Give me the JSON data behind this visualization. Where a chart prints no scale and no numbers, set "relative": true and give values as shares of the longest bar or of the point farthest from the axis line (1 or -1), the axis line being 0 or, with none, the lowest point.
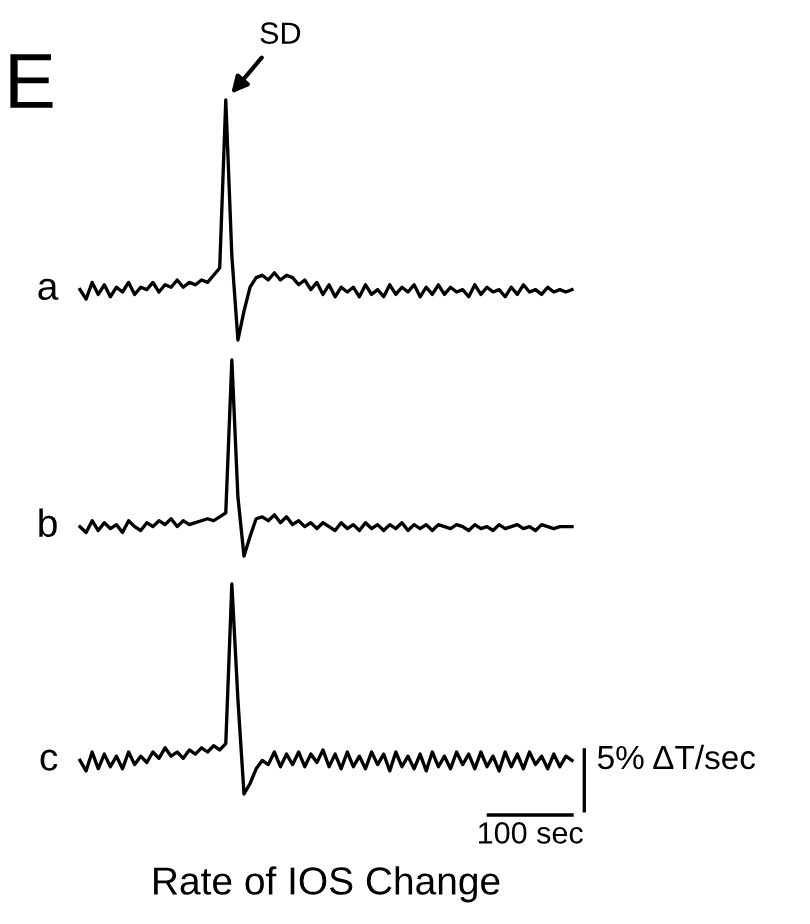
{
  "chart_data": [
    {
      "type": "line",
      "title": "E",
      "relative": true,
      "line_style": "solid",
      "marker": "none",
      "categories": [
        null,
        null,
        null,
        null,
        null,
        null,
        null,
        null,
        null,
        null,
        null,
        null,
        null,
        null,
        null,
        null,
        null,
        null,
        null,
        null,
        null,
        null,
        null,
        null,
        null,
        null,
        null,
        null,
        null,
        null,
        null,
        null,
        null,
        null,
        null,
        null,
        null,
        null,
        null,
        null,
        null,
        null,
        null,
        null,
        null,
        null,
        null,
        null,
        null,
        null,
        null,
        null,
        null,
        null,
        null,
        null,
        null,
        null,
        null,
        null,
        null,
        null,
        null,
        null,
        null,
        null,
        null,
        null,
        null,
        null,
        null,
        null,
        null,
        null,
        null,
        null,
        null,
        null,
        null,
        null,
        null,
        null
      ],
      "series": [
        {
          "name": "a",
          "color": "#000000",
          "values": [
            0.21,
            0.17,
            0.24,
            0.19,
            0.23,
            0.18,
            0.22,
            0.2,
            0.24,
            0.19,
            0.22,
            0.21,
            0.24,
            0.2,
            0.23,
            0.22,
            0.25,
            0.22,
            0.24,
            0.23,
            0.25,
            0.24,
            0.27,
            0.3,
            1.0,
            0.35,
            0,
            0.12,
            0.22,
            0.26,
            0.27,
            0.25,
            0.28,
            0.25,
            0.27,
            0.26,
            0.23,
            0.25,
            0.21,
            0.24,
            0.19,
            0.23,
            0.18,
            0.22,
            0.2,
            0.22,
            0.18,
            0.23,
            0.19,
            0.21,
            0.18,
            0.23,
            0.19,
            0.22,
            0.2,
            0.23,
            0.18,
            0.22,
            0.19,
            0.23,
            0.19,
            0.22,
            0.2,
            0.21,
            0.18,
            0.23,
            0.19,
            0.22,
            0.2,
            0.21,
            0.18,
            0.22,
            0.19,
            0.23,
            0.2,
            0.21,
            0.19,
            0.22,
            0.2,
            0.21,
            0.2,
            0.21
          ]
        }
      ],
      "annotations": [
        "SD"
      ]
    },
    {
      "type": "line",
      "relative": true,
      "line_style": "solid",
      "marker": "none",
      "categories": [
        null,
        null,
        null,
        null,
        null,
        null,
        null,
        null,
        null,
        null,
        null,
        null,
        null,
        null,
        null,
        null,
        null,
        null,
        null,
        null,
        null,
        null,
        null,
        null,
        null,
        null,
        null,
        null,
        null,
        null,
        null,
        null,
        null,
        null,
        null,
        null,
        null,
        null,
        null,
        null,
        null,
        null,
        null,
        null,
        null,
        null,
        null,
        null,
        null,
        null,
        null,
        null,
        null,
        null,
        null,
        null,
        null,
        null,
        null,
        null,
        null,
        null,
        null,
        null,
        null,
        null,
        null,
        null,
        null,
        null,
        null,
        null,
        null,
        null,
        null,
        null,
        null,
        null,
        null,
        null,
        null,
        null
      ],
      "series": [
        {
          "name": "b",
          "color": "#000000",
          "values": [
            0.15,
            0.12,
            0.18,
            0.13,
            0.17,
            0.14,
            0.16,
            0.12,
            0.18,
            0.15,
            0.13,
            0.17,
            0.15,
            0.18,
            0.16,
            0.19,
            0.15,
            0.18,
            0.16,
            0.17,
            0.18,
            0.19,
            0.18,
            0.2,
            0.22,
            1.0,
            0.3,
            0,
            0.1,
            0.19,
            0.2,
            0.18,
            0.21,
            0.17,
            0.2,
            0.16,
            0.18,
            0.15,
            0.17,
            0.14,
            0.17,
            0.15,
            0.13,
            0.17,
            0.14,
            0.16,
            0.13,
            0.17,
            0.14,
            0.16,
            0.13,
            0.16,
            0.14,
            0.17,
            0.13,
            0.16,
            0.14,
            0.16,
            0.13,
            0.16,
            0.15,
            0.14,
            0.16,
            0.15,
            0.13,
            0.16,
            0.14,
            0.15,
            0.13,
            0.16,
            0.14,
            0.15,
            0.16,
            0.14,
            0.15,
            0.13,
            0.16,
            0.15,
            0.14,
            0.15,
            0.15,
            0.15
          ]
        }
      ]
    },
    {
      "type": "line",
      "relative": true,
      "line_style": "solid",
      "marker": "none",
      "xlabel": "Rate of IOS Change",
      "categories": [
        null,
        null,
        null,
        null,
        null,
        null,
        null,
        null,
        null,
        null,
        null,
        null,
        null,
        null,
        null,
        null,
        null,
        null,
        null,
        null,
        null,
        null,
        null,
        null,
        null,
        null,
        null,
        null,
        null,
        null,
        null,
        null,
        null,
        null,
        null,
        null,
        null,
        null,
        null,
        null,
        null,
        null,
        null,
        null,
        null,
        null,
        null,
        null,
        null,
        null,
        null,
        null,
        null,
        null,
        null,
        null,
        null,
        null,
        null,
        null,
        null,
        null,
        null,
        null,
        null,
        null,
        null,
        null,
        null,
        null,
        null,
        null,
        null,
        null,
        null,
        null,
        null,
        null,
        null,
        null,
        null,
        null
      ],
      "series": [
        {
          "name": "c",
          "color": "#000000",
          "values": [
            0.16,
            0.11,
            0.2,
            0.12,
            0.19,
            0.13,
            0.18,
            0.12,
            0.2,
            0.14,
            0.18,
            0.15,
            0.2,
            0.17,
            0.22,
            0.18,
            0.2,
            0.17,
            0.21,
            0.19,
            0.22,
            0.2,
            0.23,
            0.21,
            0.24,
            1.0,
            0.45,
            0,
            0.05,
            0.12,
            0.16,
            0.14,
            0.2,
            0.13,
            0.19,
            0.14,
            0.2,
            0.13,
            0.19,
            0.15,
            0.21,
            0.13,
            0.19,
            0.12,
            0.2,
            0.13,
            0.18,
            0.12,
            0.2,
            0.14,
            0.19,
            0.11,
            0.2,
            0.13,
            0.18,
            0.12,
            0.19,
            0.11,
            0.2,
            0.13,
            0.18,
            0.12,
            0.2,
            0.14,
            0.19,
            0.12,
            0.2,
            0.13,
            0.18,
            0.11,
            0.2,
            0.13,
            0.19,
            0.12,
            0.2,
            0.14,
            0.18,
            0.12,
            0.19,
            0.13,
            0.18,
            0.16
          ]
        }
      ],
      "annotations": [
        "5% ΔT/sec",
        "100 sec"
      ]
    }
  ]
}
